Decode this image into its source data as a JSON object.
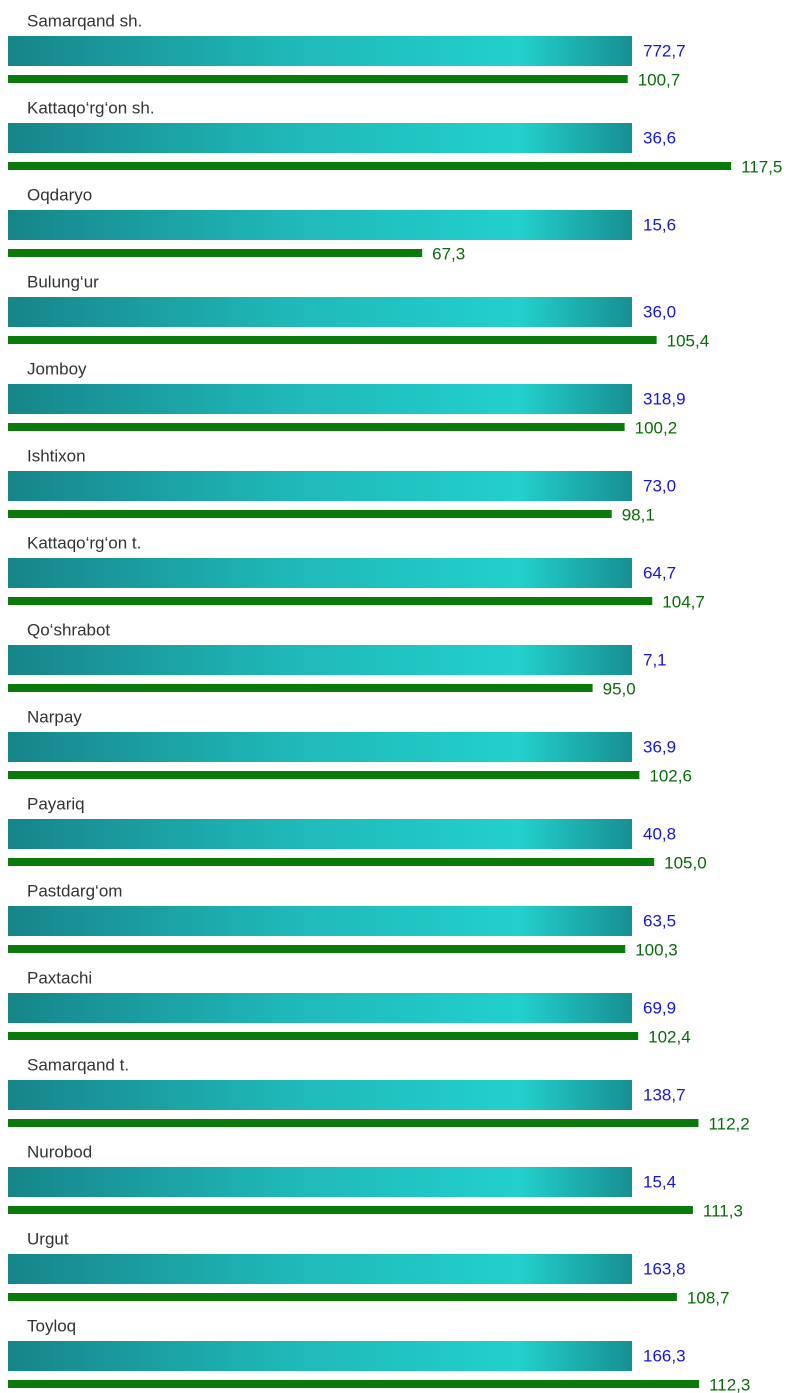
{
  "chart_data": {
    "type": "bar",
    "categories": [
      "Samarqand sh.",
      "Kattaqo‘rg‘on sh.",
      "Oqdaryo",
      "Bulung‘ur",
      "Jomboy",
      "Ishtixon",
      "Kattaqo‘rg‘on t.",
      "Qo‘shrabot",
      "Narpay",
      "Payariq",
      "Pastdarg‘om",
      "Paxtachi",
      "Samarqand t.",
      "Nurobod",
      "Urgut",
      "Toyloq"
    ],
    "series": [
      {
        "color": "#1414e6",
        "values": [
          772.7,
          36.6,
          15.6,
          36.0,
          318.9,
          73.0,
          64.7,
          7.1,
          36.9,
          40.8,
          63.5,
          69.9,
          138.7,
          15.4,
          163.8,
          166.3
        ],
        "value_labels": [
          "772,7",
          "36,6",
          "15,6",
          "36,0",
          "318,9",
          "73,0",
          "64,7",
          "7,1",
          "36,9",
          "40,8",
          "63,5",
          "69,9",
          "138,7",
          "15,4",
          "163,8",
          "166,3"
        ]
      },
      {
        "color": "#0a7a0a",
        "values": [
          100.7,
          117.5,
          67.3,
          105.4,
          100.2,
          98.1,
          104.7,
          95.0,
          102.6,
          105.0,
          100.3,
          102.4,
          112.2,
          111.3,
          108.7,
          112.3
        ],
        "value_labels": [
          "100,7",
          "117,5",
          "67,3",
          "105,4",
          "100,2",
          "98,1",
          "104,7",
          "95,0",
          "102,6",
          "105,0",
          "100,3",
          "102,4",
          "112,2",
          "111,3",
          "108,7",
          "112,3"
        ]
      }
    ],
    "xlim": [
      0,
      130
    ]
  }
}
